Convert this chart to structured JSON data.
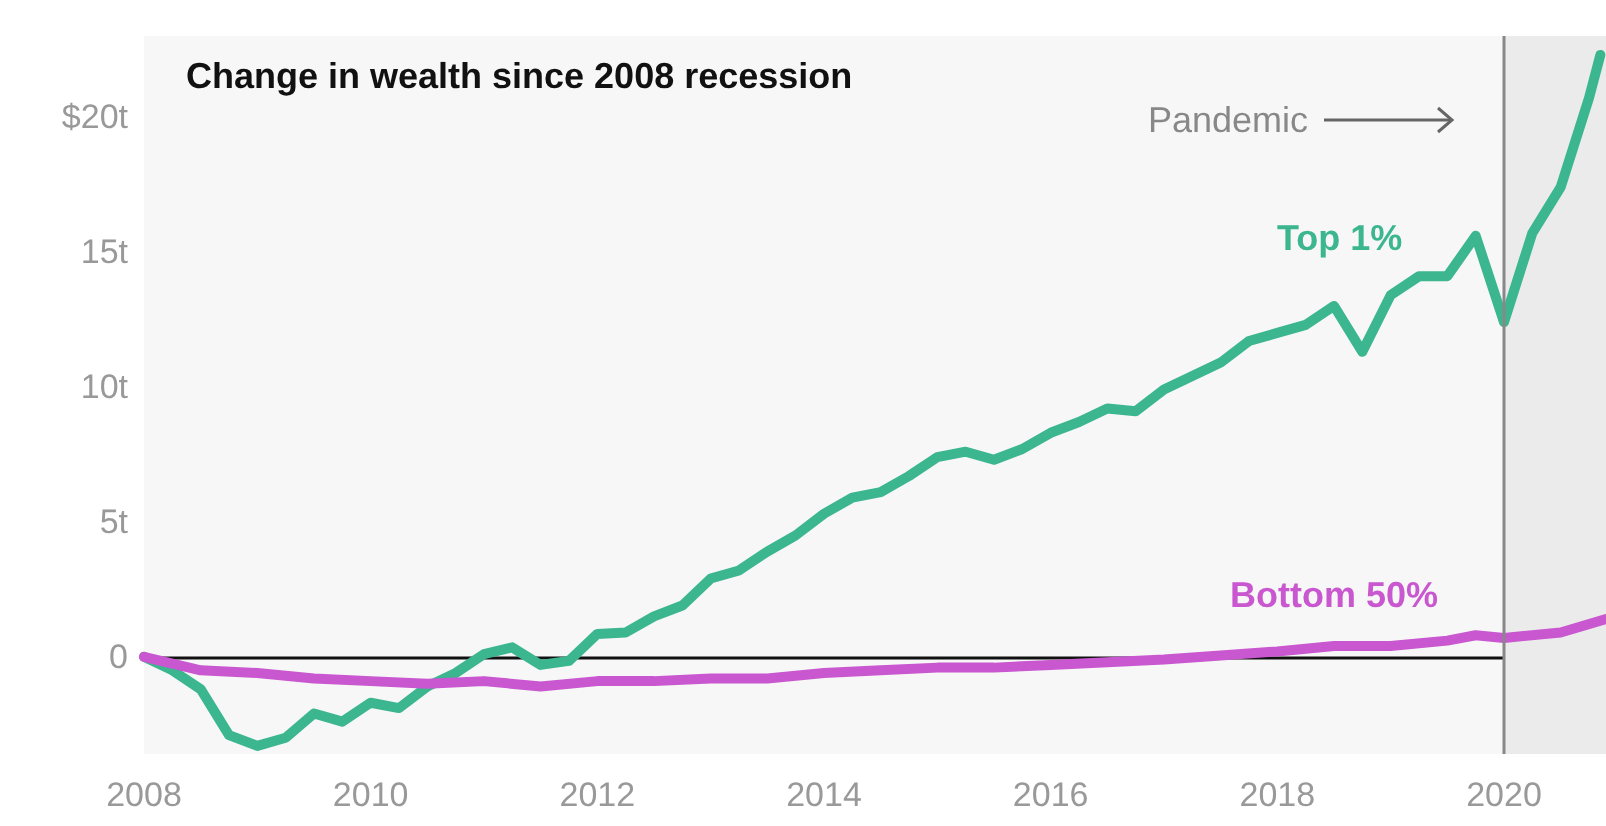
{
  "chart_data": {
    "type": "line",
    "title": "Change in wealth since 2008 recession",
    "series": [
      {
        "name": "Top 1%",
        "color": "#3bb68f",
        "x": [
          2008,
          2008.25,
          2008.5,
          2008.75,
          2009,
          2009.25,
          2009.5,
          2009.75,
          2010,
          2010.25,
          2010.5,
          2010.75,
          2011,
          2011.25,
          2011.5,
          2011.75,
          2012,
          2012.25,
          2012.5,
          2012.75,
          2013,
          2013.25,
          2013.5,
          2013.75,
          2014,
          2014.25,
          2014.5,
          2014.75,
          2015,
          2015.25,
          2015.5,
          2015.75,
          2016,
          2016.25,
          2016.5,
          2016.75,
          2017,
          2017.25,
          2017.5,
          2017.75,
          2018,
          2018.25,
          2018.5,
          2018.75,
          2019,
          2019.25,
          2019.5,
          2019.75,
          2020,
          2020.25,
          2020.5,
          2020.75,
          2020.85
        ],
        "values": [
          0,
          -0.5,
          -1.2,
          -2.9,
          -3.3,
          -3,
          -2.1,
          -2.4,
          -1.7,
          -1.9,
          -1.1,
          -0.6,
          0.1,
          0.35,
          -0.3,
          -0.15,
          0.85,
          0.9,
          1.5,
          1.9,
          2.9,
          3.2,
          3.9,
          4.5,
          5.3,
          5.9,
          6.1,
          6.7,
          7.4,
          7.6,
          7.3,
          7.7,
          8.3,
          8.7,
          9.2,
          9.1,
          9.9,
          10.4,
          10.9,
          11.7,
          12,
          12.3,
          13,
          11.3,
          13.4,
          14.1,
          14.1,
          15.6,
          12.4,
          15.7,
          17.4,
          20.7,
          22.3
        ]
      },
      {
        "name": "Bottom 50%",
        "color": "#c957cf",
        "x": [
          2008,
          2008.5,
          2009,
          2009.5,
          2010,
          2010.5,
          2011,
          2011.5,
          2012,
          2012.5,
          2013,
          2013.5,
          2014,
          2014.5,
          2015,
          2015.5,
          2016,
          2016.5,
          2017,
          2017.5,
          2018,
          2018.5,
          2019,
          2019.5,
          2019.75,
          2020,
          2020.5,
          2020.9
        ],
        "values": [
          0,
          -0.5,
          -0.6,
          -0.8,
          -0.9,
          -1,
          -0.9,
          -1.1,
          -0.9,
          -0.9,
          -0.8,
          -0.8,
          -0.6,
          -0.5,
          -0.4,
          -0.4,
          -0.3,
          -0.2,
          -0.1,
          0.05,
          0.2,
          0.4,
          0.4,
          0.6,
          0.8,
          0.7,
          0.9,
          1.4
        ]
      }
    ],
    "xlim": [
      2008,
      2020.9
    ],
    "xticks": [
      2008,
      2010,
      2012,
      2014,
      2016,
      2018,
      2020
    ],
    "ylim": [
      -3.6,
      23
    ],
    "yticks": [
      {
        "value": 20,
        "label": "$20t"
      },
      {
        "value": 15,
        "label": "15t"
      },
      {
        "value": 10,
        "label": "10t"
      },
      {
        "value": 5,
        "label": "5t"
      },
      0
    ],
    "ref_lines": [
      {
        "axis": "x",
        "value": 2020,
        "label": "Pandemic",
        "color": "#888888"
      }
    ],
    "bands": [
      {
        "axis": "x",
        "from": 2020,
        "to": 2020.9,
        "color": "#ebebeb"
      }
    ],
    "legend": false,
    "grid": false,
    "marker": "none",
    "line_style": "solid"
  }
}
